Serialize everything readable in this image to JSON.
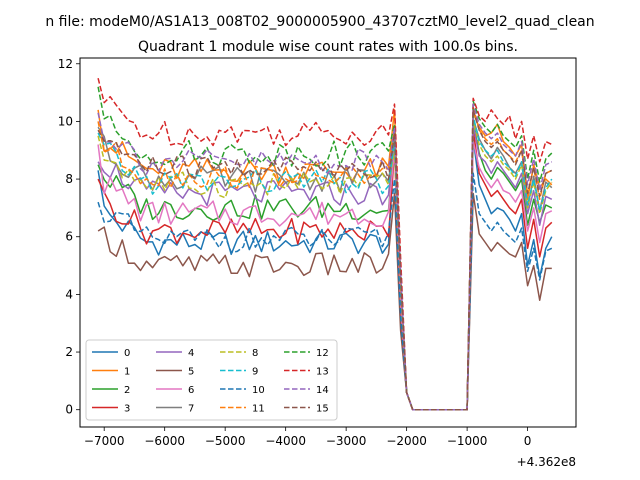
{
  "figure": {
    "suptitle": "n file: modeM0/AS1A13_008T02_9000005900_43707cztM0_level2_quad_clean",
    "offset_label": "+4.362e8"
  },
  "chart_data": {
    "type": "line",
    "title": "Quadrant 1 module wise count rates with 100.0s bins.",
    "xlabel": "",
    "ylabel": "",
    "xlim": [
      -7400,
      800
    ],
    "ylim": [
      -0.6,
      12.2
    ],
    "x_offset": 436200000,
    "x_ticks": [
      -7000,
      -6000,
      -5000,
      -4000,
      -3000,
      -2000,
      -1000,
      0
    ],
    "y_ticks": [
      0,
      2,
      4,
      6,
      8,
      10,
      12
    ],
    "grid": false,
    "legend": {
      "placement": "lower-left",
      "columns": 4
    },
    "gap": {
      "x_start": -2000,
      "x_end": -1000,
      "value": 0
    },
    "x_segment_1": {
      "start": -7100,
      "end": -2100,
      "step": 100
    },
    "x_segment_2": {
      "start": -900,
      "end": 400,
      "step": 100
    },
    "series": [
      {
        "name": "0",
        "color": "#1f77b4",
        "dashed": false,
        "base": 5.8,
        "spike": 9.3,
        "seg1_first": 8.3,
        "seg2": [
          9.4,
          7.8,
          7.3,
          6.8,
          7.0,
          6.9,
          6.6,
          6.2,
          6.8,
          5.0,
          5.9,
          4.6,
          5.6,
          6.0
        ]
      },
      {
        "name": "1",
        "color": "#ff7f0e",
        "dashed": false,
        "base": 8.3,
        "spike": 10.4,
        "seg1_first": 10.4,
        "seg2": [
          10.3,
          9.8,
          9.5,
          9.6,
          9.9,
          9.3,
          9.1,
          8.8,
          9.2,
          7.3,
          8.5,
          7.7,
          8.0,
          7.8
        ]
      },
      {
        "name": "2",
        "color": "#2ca02c",
        "dashed": false,
        "base": 7.0,
        "spike": 9.4,
        "seg1_first": 8.5,
        "seg2": [
          10.0,
          8.9,
          8.3,
          8.0,
          8.4,
          8.2,
          7.9,
          7.6,
          8.0,
          6.4,
          7.3,
          6.5,
          7.1,
          7.0
        ]
      },
      {
        "name": "3",
        "color": "#d62728",
        "dashed": false,
        "base": 6.2,
        "spike": 9.0,
        "seg1_first": 8.0,
        "seg2": [
          9.7,
          8.2,
          7.8,
          7.4,
          7.6,
          7.3,
          7.0,
          6.8,
          7.3,
          5.6,
          6.6,
          5.3,
          6.3,
          6.5
        ]
      },
      {
        "name": "4",
        "color": "#9467bd",
        "dashed": false,
        "base": 7.5,
        "spike": 9.6,
        "seg1_first": 8.6,
        "seg2": [
          9.9,
          8.8,
          8.6,
          8.2,
          8.6,
          8.3,
          8.0,
          7.7,
          8.2,
          6.8,
          7.6,
          6.4,
          7.4,
          7.3
        ]
      },
      {
        "name": "5",
        "color": "#8c564b",
        "dashed": false,
        "base": 5.0,
        "spike": 7.5,
        "seg1_first": 6.2,
        "seg2": [
          7.5,
          6.1,
          5.8,
          5.5,
          5.8,
          5.6,
          5.4,
          5.3,
          5.8,
          4.3,
          5.0,
          3.8,
          4.9,
          4.9
        ]
      },
      {
        "name": "6",
        "color": "#e377c2",
        "dashed": false,
        "base": 6.8,
        "spike": 9.0,
        "seg1_first": 9.2,
        "seg2": [
          9.3,
          8.4,
          8.0,
          7.7,
          8.0,
          7.6,
          7.5,
          7.2,
          7.6,
          6.2,
          7.0,
          5.8,
          6.8,
          6.9
        ]
      },
      {
        "name": "7",
        "color": "#7f7f7f",
        "dashed": false,
        "base": 8.0,
        "spike": 9.5,
        "seg1_first": 9.8,
        "seg2": [
          10.1,
          9.4,
          9.0,
          8.7,
          9.1,
          8.8,
          8.4,
          8.2,
          8.6,
          7.0,
          8.1,
          6.9,
          7.9,
          7.7
        ]
      },
      {
        "name": "8",
        "color": "#bcbd22",
        "dashed": true,
        "base": 7.8,
        "spike": 9.0,
        "seg1_first": 9.5,
        "seg2": [
          10.0,
          9.2,
          8.8,
          8.6,
          8.8,
          8.5,
          8.3,
          8.0,
          8.5,
          7.0,
          7.9,
          6.8,
          7.6,
          7.9
        ]
      },
      {
        "name": "9",
        "color": "#17becf",
        "dashed": true,
        "base": 7.9,
        "spike": 9.3,
        "seg1_first": 9.6,
        "seg2": [
          10.2,
          9.3,
          9.0,
          8.8,
          9.0,
          8.6,
          8.4,
          8.1,
          8.6,
          7.1,
          8.0,
          6.9,
          7.7,
          8.0
        ]
      },
      {
        "name": "10",
        "color": "#1f77b4",
        "dashed": true,
        "base": 5.9,
        "spike": 8.0,
        "seg1_first": 7.2,
        "seg2": [
          8.2,
          6.8,
          6.5,
          6.2,
          6.5,
          6.2,
          6.0,
          5.8,
          6.3,
          4.8,
          5.6,
          4.5,
          5.5,
          5.6
        ]
      },
      {
        "name": "11",
        "color": "#ff7f0e",
        "dashed": true,
        "base": 8.1,
        "spike": 9.7,
        "seg1_first": 10.0,
        "seg2": [
          10.5,
          9.7,
          9.4,
          9.2,
          9.4,
          9.0,
          8.8,
          8.6,
          9.0,
          7.5,
          8.4,
          7.3,
          8.2,
          8.3
        ]
      },
      {
        "name": "12",
        "color": "#2ca02c",
        "dashed": true,
        "base": 8.9,
        "spike": 9.9,
        "seg1_first": 11.2,
        "seg2": [
          10.7,
          10.1,
          9.8,
          9.6,
          9.9,
          9.5,
          9.3,
          9.1,
          9.5,
          8.0,
          9.0,
          7.9,
          8.7,
          8.9
        ]
      },
      {
        "name": "13",
        "color": "#d62728",
        "dashed": true,
        "base": 9.6,
        "spike": 10.6,
        "seg1_first": 11.5,
        "seg2": [
          10.8,
          10.2,
          10.0,
          10.4,
          10.1,
          9.9,
          10.2,
          9.4,
          10.0,
          8.7,
          9.5,
          8.6,
          9.3,
          9.2
        ]
      },
      {
        "name": "14",
        "color": "#9467bd",
        "dashed": true,
        "base": 8.6,
        "spike": 9.8,
        "seg1_first": 10.3,
        "seg2": [
          10.6,
          9.9,
          9.6,
          9.4,
          9.6,
          9.2,
          9.0,
          8.8,
          9.3,
          7.8,
          8.7,
          7.6,
          8.5,
          8.6
        ]
      },
      {
        "name": "15",
        "color": "#8c564b",
        "dashed": true,
        "base": 8.4,
        "spike": 9.6,
        "seg1_first": 9.7,
        "seg2": [
          10.4,
          9.7,
          9.3,
          9.1,
          9.3,
          9.0,
          8.8,
          8.5,
          9.0,
          7.5,
          8.4,
          7.4,
          8.2,
          8.3
        ]
      }
    ]
  }
}
